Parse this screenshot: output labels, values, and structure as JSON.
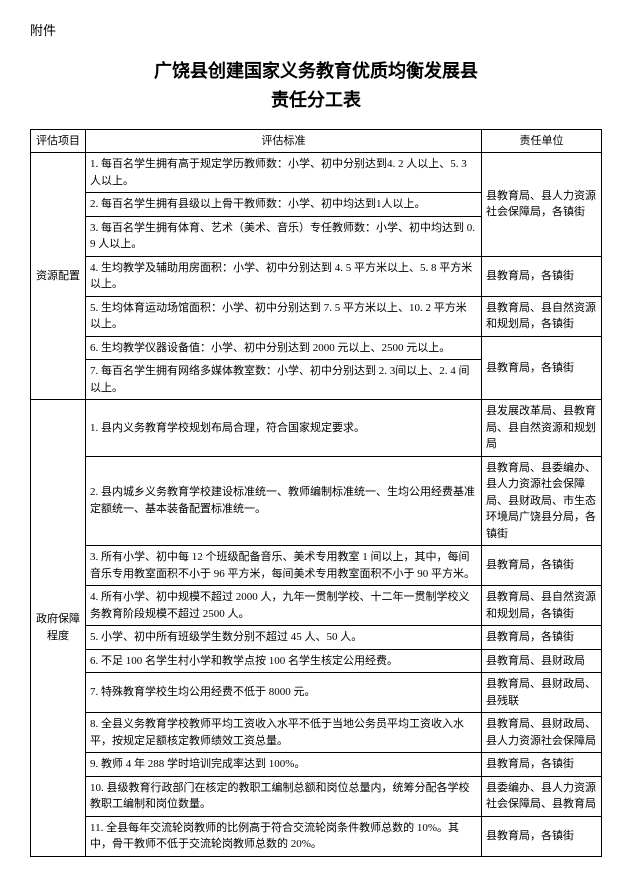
{
  "attachment_label": "附件",
  "title_line1": "广饶县创建国家义务教育优质均衡发展县",
  "title_line2": "责任分工表",
  "headers": {
    "col1": "评估项目",
    "col2": "评估标准",
    "col3": "责任单位"
  },
  "sections": [
    {
      "category": "资源配置",
      "rows": [
        {
          "std": "1. 每百名学生拥有高于规定学历教师数：小学、初中分别达到4. 2 人以上、5. 3 人以上。",
          "resp": "",
          "merge_resp_with_next": true
        },
        {
          "std": "2. 每百名学生拥有县级以上骨干教师数：小学、初中均达到1人以上。",
          "resp": "县教育局、县人力资源社会保障局，各镇街",
          "resp_rowspan": 3,
          "is_merged_start": true
        },
        {
          "std": "3. 每百名学生拥有体育、艺术（美术、音乐）专任教师数：小学、初中均达到 0. 9 人以上。",
          "resp": "",
          "is_merged": true
        },
        {
          "std": "4. 生均教学及辅助用房面积：小学、初中分别达到 4. 5 平方米以上、5. 8 平方米以上。",
          "resp": "县教育局，各镇街"
        },
        {
          "std": "5. 生均体育运动场馆面积：小学、初中分别达到 7. 5 平方米以上、10. 2 平方米以上。",
          "resp": "县教育局、县自然资源和规划局，各镇街"
        },
        {
          "std": "6. 生均教学仪器设备值：小学、初中分别达到 2000 元以上、2500 元以上。",
          "resp": "县教育局，各镇街",
          "resp_rowspan": 2
        },
        {
          "std": "7. 每百名学生拥有网络多媒体教室数：小学、初中分别达到 2. 3间以上、2. 4 间以上。",
          "resp": "",
          "is_merged": true
        }
      ]
    },
    {
      "category": "政府保障程度",
      "rows": [
        {
          "std": "1. 县内义务教育学校规划布局合理，符合国家规定要求。",
          "resp": "县发展改革局、县教育局、县自然资源和规划局"
        },
        {
          "std": "2. 县内城乡义务教育学校建设标准统一、教师编制标准统一、生均公用经费基准定额统一、基本装备配置标准统一。",
          "resp": "县教育局、县委编办、县人力资源社会保障局、县财政局、市生态环境局广饶县分局，各镇街"
        },
        {
          "std": "3. 所有小学、初中每 12 个班级配备音乐、美术专用教室 1 间以上，其中，每间音乐专用教室面积不小于 96 平方米，每间美术专用教室面积不小于 90 平方米。",
          "resp": "县教育局，各镇街"
        },
        {
          "std": "4. 所有小学、初中规模不超过 2000 人，九年一贯制学校、十二年一贯制学校义务教育阶段规模不超过 2500 人。",
          "resp": "县教育局、县自然资源和规划局，各镇街"
        },
        {
          "std": "5. 小学、初中所有班级学生数分别不超过 45 人、50 人。",
          "resp": "县教育局，各镇街"
        },
        {
          "std": "6. 不足 100 名学生村小学和教学点按 100 名学生核定公用经费。",
          "resp": "县教育局、县财政局"
        },
        {
          "std": "7. 特殊教育学校生均公用经费不低于 8000 元。",
          "resp": "县教育局、县财政局、县残联"
        },
        {
          "std": "8. 全县义务教育学校教师平均工资收入水平不低于当地公务员平均工资收入水平，按规定足额核定教师绩效工资总量。",
          "resp": "县教育局、县财政局、县人力资源社会保障局"
        },
        {
          "std": "9. 教师 4 年 288 学时培训完成率达到 100%。",
          "resp": "县教育局，各镇街"
        },
        {
          "std": "10. 县级教育行政部门在核定的教职工编制总额和岗位总量内，统筹分配各学校教职工编制和岗位数量。",
          "resp": "县委编办、县人力资源社会保障局、县教育局"
        },
        {
          "std": "11. 全县每年交流轮岗教师的比例高于符合交流轮岗条件教师总数的 10%。其中，骨干教师不低于交流轮岗教师总数的 20%。",
          "resp": "县教育局，各镇街"
        }
      ]
    }
  ]
}
